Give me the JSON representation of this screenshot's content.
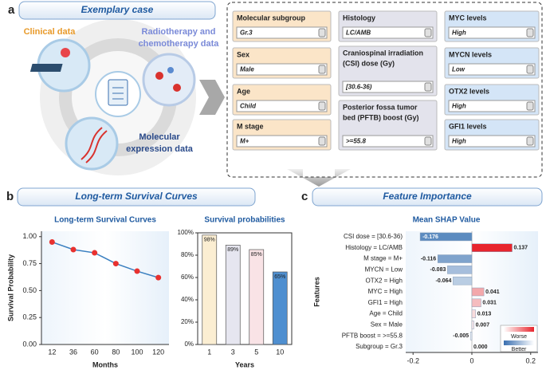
{
  "panel_a": {
    "letter": "a",
    "title": "Exemplary case",
    "sources": [
      {
        "lines": [
          "Clinical data"
        ]
      },
      {
        "lines": [
          "Radiotherapy and",
          "chemotherapy data"
        ]
      },
      {
        "lines": [
          "Molecular",
          "expression data"
        ]
      }
    ],
    "fields": [
      {
        "label": [
          "Molecular subgroup"
        ],
        "value": "Gr.3"
      },
      {
        "label": [
          "Sex"
        ],
        "value": "Male"
      },
      {
        "label": [
          "Age"
        ],
        "value": "Child"
      },
      {
        "label": [
          "M stage"
        ],
        "value": "M+"
      },
      {
        "label": [
          "Histology"
        ],
        "value": "LC/AMB"
      },
      {
        "label": [
          "Craniospinal irradiation",
          "(CSI) dose (Gy)"
        ],
        "value": "[30.6-36)"
      },
      {
        "label": [
          "Posterior fossa tumor",
          "bed (PFTB) boost (Gy)"
        ],
        "value": ">=55.8"
      },
      {
        "label": [
          "MYC levels"
        ],
        "value": "High"
      },
      {
        "label": [
          "MYCN levels"
        ],
        "value": "Low"
      },
      {
        "label": [
          "OTX2 levels"
        ],
        "value": "High"
      },
      {
        "label": [
          "GFI1 levels"
        ],
        "value": "High"
      }
    ]
  },
  "chart_data": [
    {
      "type": "line",
      "letter": "b",
      "panel_title": "Long-term Survival Curves",
      "title": "Long-term Survival Curves",
      "categories": [
        "12",
        "36",
        "60",
        "80",
        "100",
        "120"
      ],
      "values": [
        0.95,
        0.88,
        0.85,
        0.75,
        0.68,
        0.62
      ],
      "color": "#3a7fc0",
      "marker_color": "#e8312f",
      "xlabel": "Months",
      "ylabel": "Survival Probability",
      "ylim": [
        0,
        1.05
      ],
      "yticks": [
        {
          "value": 0,
          "label": "0.00"
        },
        {
          "value": 0.25,
          "label": "0.25"
        },
        {
          "value": 0.5,
          "label": "0.50"
        },
        {
          "value": 0.75,
          "label": "0.75"
        },
        {
          "value": 1,
          "label": "1.00"
        }
      ]
    },
    {
      "type": "bar",
      "title": "Survival probabilities",
      "categories": [
        "1",
        "3",
        "5",
        "10"
      ],
      "values": [
        98,
        89,
        85,
        65
      ],
      "value_labels": [
        "98%",
        "89%",
        "85%",
        "65%"
      ],
      "colors": [
        "#fbeed2",
        "#e6e6f0",
        "#f9e3e6",
        "#4f8fd0"
      ],
      "xlabel": "Years",
      "ylim": [
        0,
        100
      ],
      "yticks": [
        {
          "value": 0,
          "label": "0%"
        },
        {
          "value": 20,
          "label": "20%"
        },
        {
          "value": 40,
          "label": "40%"
        },
        {
          "value": 60,
          "label": "60%"
        },
        {
          "value": 80,
          "label": "80%"
        },
        {
          "value": 100,
          "label": "100%"
        }
      ]
    },
    {
      "type": "barh",
      "letter": "c",
      "panel_title": "Feature Importance",
      "title": "Mean SHAP Value",
      "ylabel": "Features",
      "categories": [
        "CSI dose = [30.6-36)",
        "Histology = LC/AMB",
        "M stage = M+",
        "MYCN = Low",
        "OTX2 = High",
        "MYC = High",
        "GFI1 = High",
        "Age = Child",
        "Sex = Male",
        "PFTB boost = >=55.8",
        "Subgroup = Gr.3"
      ],
      "values": [
        -0.176,
        0.137,
        -0.116,
        -0.083,
        -0.064,
        0.041,
        0.031,
        0.013,
        0.007,
        -0.005,
        0
      ],
      "value_labels": [
        "-0.176",
        "0.137",
        "-0.116",
        "-0.083",
        "-0.064",
        "0.041",
        "0.031",
        "0.013",
        "0.007",
        "-0.005",
        "0.000"
      ],
      "colors": [
        "#5b8bc0",
        "#e8252d",
        "#7fa3cc",
        "#a6bedc",
        "#b9cde3",
        "#f3a8ab",
        "#f5bcbe",
        "#f9dcdd",
        "#fbe9ea",
        "#eef2f7",
        "#ffffff"
      ],
      "xlim": [
        -0.225,
        0.225
      ],
      "xticks": [
        -0.2,
        0,
        0.2
      ],
      "legend": {
        "high": "Worse",
        "low": "Better"
      }
    }
  ]
}
